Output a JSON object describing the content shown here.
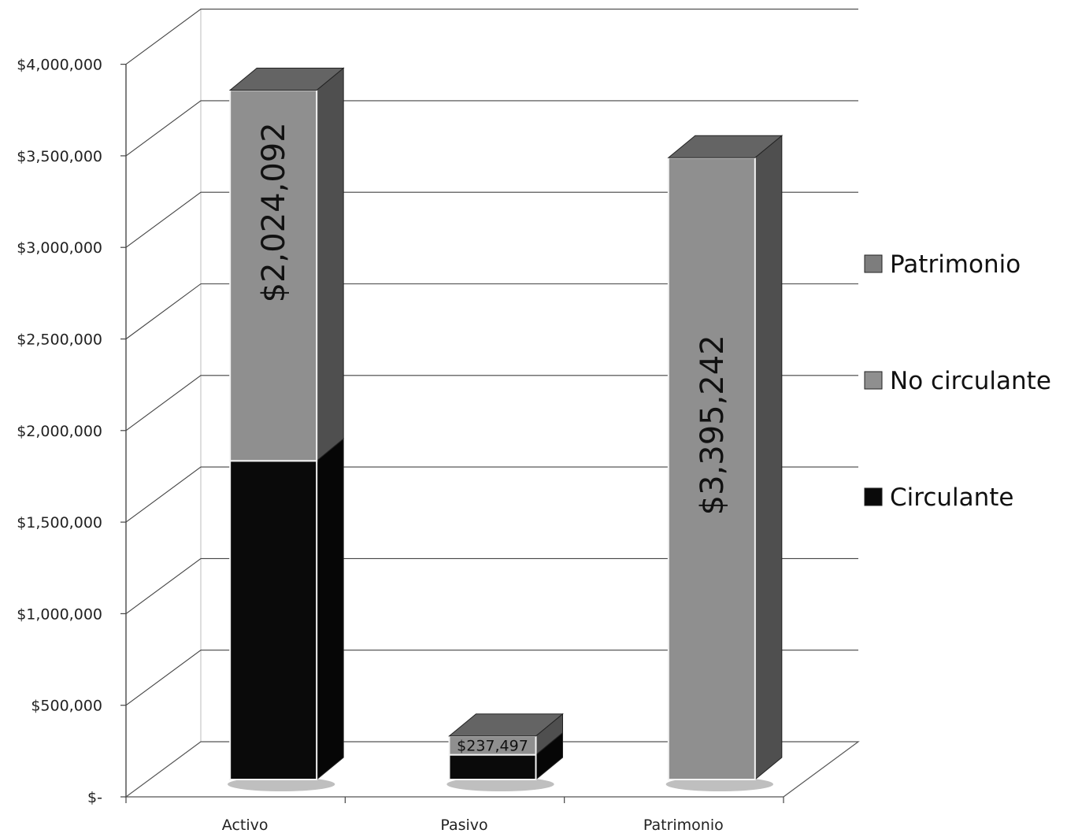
{
  "chart_data": {
    "type": "bar",
    "stacked": true,
    "three_d": true,
    "categories": [
      "Activo",
      "Pasivo",
      "Patrimonio"
    ],
    "series": [
      {
        "name": "Circulante",
        "values": [
          1740000,
          135000,
          0
        ],
        "color": "#0a0a0a"
      },
      {
        "name": "No circulante",
        "values": [
          2024092,
          102497,
          0
        ],
        "color": "#8f8f8f"
      },
      {
        "name": "Patrimonio",
        "values": [
          0,
          0,
          3395242
        ],
        "color": "#8f8f8f"
      }
    ],
    "data_labels": [
      {
        "category": "Activo",
        "series": "No circulante",
        "text": "$2,024,092",
        "rotated": true
      },
      {
        "category": "Pasivo",
        "series": "No circulante",
        "text": "$237,497",
        "rotated": false
      },
      {
        "category": "Patrimonio",
        "series": "Patrimonio",
        "text": "$3,395,242",
        "rotated": true
      }
    ],
    "y_ticks": [
      "$-",
      "$500,000",
      "$1,000,000",
      "$1,500,000",
      "$2,000,000",
      "$2,500,000",
      "$3,000,000",
      "$3,500,000",
      "$4,000,000"
    ],
    "ylim": [
      0,
      4000000
    ],
    "grid": true,
    "legend": {
      "placement": "right",
      "entries": [
        {
          "label": "Patrimonio",
          "color": "#7d7d7d"
        },
        {
          "label": "No circulante",
          "color": "#8f8f8f"
        },
        {
          "label": "Circulante",
          "color": "#0a0a0a"
        }
      ]
    },
    "title": "",
    "xlabel": "",
    "ylabel": ""
  }
}
